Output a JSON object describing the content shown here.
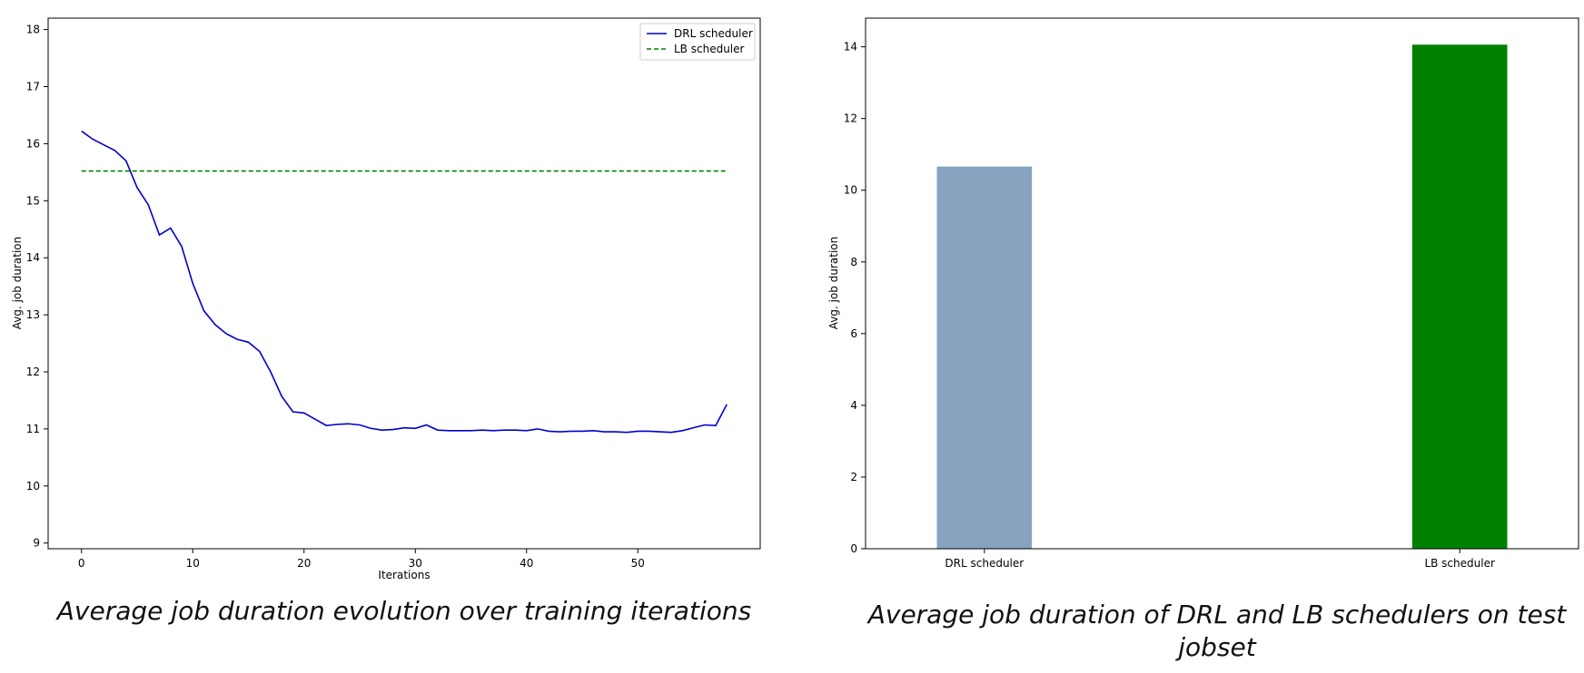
{
  "captions": {
    "left": "Average job duration evolution over training iterations",
    "right": "Average job duration of DRL and LB schedulers on test jobset"
  },
  "chart_data": [
    {
      "type": "line",
      "title": "",
      "xlabel": "Iterations",
      "ylabel": "Avg. job duration",
      "xlim": [
        -3,
        61
      ],
      "ylim": [
        8.9,
        18.2
      ],
      "xticks": [
        0,
        10,
        20,
        30,
        40,
        50
      ],
      "yticks": [
        9,
        10,
        11,
        12,
        13,
        14,
        15,
        16,
        17,
        18
      ],
      "grid": false,
      "legend_position": "top-right",
      "series": [
        {
          "name": "DRL scheduler",
          "color": "#0000cc",
          "style": "solid",
          "x": [
            0,
            1,
            2,
            3,
            4,
            5,
            6,
            7,
            8,
            9,
            10,
            11,
            12,
            13,
            14,
            15,
            16,
            17,
            18,
            19,
            20,
            21,
            22,
            23,
            24,
            25,
            26,
            27,
            28,
            29,
            30,
            31,
            32,
            33,
            34,
            35,
            36,
            37,
            38,
            39,
            40,
            41,
            42,
            43,
            44,
            45,
            46,
            47,
            48,
            49,
            50,
            51,
            52,
            53,
            54,
            55,
            56,
            57,
            58
          ],
          "y": [
            16.22,
            16.08,
            15.98,
            15.88,
            15.7,
            15.23,
            14.93,
            14.4,
            14.52,
            14.2,
            13.55,
            13.07,
            12.83,
            12.67,
            12.57,
            12.52,
            12.36,
            12.0,
            11.57,
            11.3,
            11.28,
            11.17,
            11.06,
            11.08,
            11.09,
            11.07,
            11.01,
            10.98,
            10.99,
            11.02,
            11.01,
            11.07,
            10.98,
            10.97,
            10.97,
            10.97,
            10.98,
            10.97,
            10.98,
            10.98,
            10.97,
            11.0,
            10.96,
            10.95,
            10.96,
            10.96,
            10.97,
            10.95,
            10.95,
            10.94,
            10.96,
            10.96,
            10.95,
            10.94,
            10.97,
            11.02,
            11.07,
            11.06,
            11.43
          ]
        },
        {
          "name": "LB scheduler",
          "color": "#008000",
          "style": "dashed",
          "x": [
            0,
            58
          ],
          "y": [
            15.52,
            15.52
          ]
        }
      ]
    },
    {
      "type": "bar",
      "title": "",
      "xlabel": "",
      "ylabel": "Avg. job duration",
      "ylim": [
        0,
        14.8
      ],
      "yticks": [
        0,
        2,
        4,
        6,
        8,
        10,
        12,
        14
      ],
      "grid": false,
      "categories": [
        "DRL scheduler",
        "LB scheduler"
      ],
      "values": [
        10.66,
        14.06
      ],
      "colors": [
        "#87a3c0",
        "#008000"
      ]
    }
  ]
}
